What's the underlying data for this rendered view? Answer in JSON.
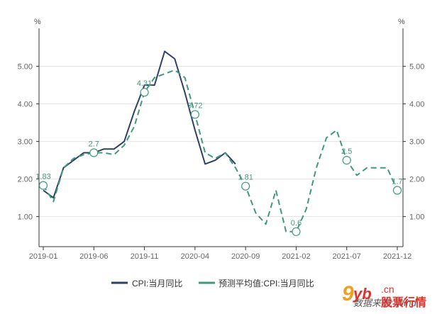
{
  "chart_data": {
    "type": "line",
    "y_unit_left": "%",
    "y_unit_right": "%",
    "ylim": [
      0.0,
      5.8
    ],
    "y_ticks": [
      "1.00",
      "2.00",
      "3.00",
      "4.00",
      "5.00"
    ],
    "x_ticks": [
      "2019-01",
      "2019-06",
      "2019-11",
      "2020-04",
      "2020-09",
      "2021-02",
      "2021-07",
      "2021-12"
    ],
    "grid": "horizontal",
    "legend_position": "bottom",
    "series": [
      {
        "name": "CPI:当月同比",
        "color": "#2e3f6b",
        "style": "solid",
        "x": [
          "2019-01",
          "2019-02",
          "2019-03",
          "2019-04",
          "2019-05",
          "2019-06",
          "2019-07",
          "2019-08",
          "2019-09",
          "2019-10",
          "2019-11",
          "2019-12",
          "2020-01",
          "2020-02",
          "2020-03",
          "2020-04",
          "2020-05",
          "2020-06",
          "2020-07",
          "2020-08"
        ],
        "values": [
          1.7,
          1.5,
          2.3,
          2.5,
          2.7,
          2.7,
          2.8,
          2.8,
          3.0,
          3.8,
          4.5,
          4.5,
          5.4,
          5.2,
          4.3,
          3.3,
          2.4,
          2.5,
          2.7,
          2.4
        ]
      },
      {
        "name": "预测平均值:CPI:当月同比",
        "color": "#3f9a7a",
        "style": "dashed",
        "x": [
          "2019-01",
          "2019-02",
          "2019-03",
          "2019-04",
          "2019-05",
          "2019-06",
          "2019-07",
          "2019-08",
          "2019-09",
          "2019-10",
          "2019-11",
          "2019-12",
          "2020-01",
          "2020-02",
          "2020-03",
          "2020-04",
          "2020-05",
          "2020-06",
          "2020-07",
          "2020-08",
          "2020-09",
          "2020-10",
          "2020-11",
          "2020-12",
          "2021-01",
          "2021-02",
          "2021-03",
          "2021-04",
          "2021-05",
          "2021-06",
          "2021-07",
          "2021-08",
          "2021-09",
          "2021-10",
          "2021-11",
          "2021-12"
        ],
        "values": [
          1.83,
          1.4,
          2.3,
          2.55,
          2.65,
          2.7,
          2.7,
          2.65,
          2.9,
          3.4,
          4.31,
          4.7,
          4.8,
          4.9,
          4.7,
          3.72,
          2.7,
          2.55,
          2.7,
          2.3,
          1.81,
          1.1,
          0.8,
          1.7,
          0.6,
          0.6,
          1.2,
          2.3,
          3.1,
          3.3,
          2.5,
          2.1,
          2.3,
          2.3,
          2.3,
          1.7
        ]
      }
    ],
    "data_labels": [
      {
        "x": "2019-01",
        "value": 1.83,
        "text": "1.83"
      },
      {
        "x": "2019-06",
        "value": 2.7,
        "text": "2.7"
      },
      {
        "x": "2019-11",
        "value": 4.31,
        "text": "4.31"
      },
      {
        "x": "2020-04",
        "value": 3.72,
        "text": "3.72"
      },
      {
        "x": "2020-09",
        "value": 1.81,
        "text": "1.81"
      },
      {
        "x": "2021-02",
        "value": 0.6,
        "text": "0.6"
      },
      {
        "x": "2021-07",
        "value": 2.5,
        "text": "2.5"
      },
      {
        "x": "2021-12",
        "value": 1.7,
        "text": "1.7"
      }
    ]
  },
  "legend": {
    "items": [
      {
        "label": "CPI:当月同比",
        "color": "#2e3f6b",
        "style": "solid"
      },
      {
        "label": "预测平均值:CPI:当月同比",
        "color": "#3f9a7a",
        "style": "dashed"
      }
    ]
  },
  "source": "数据来源: Wind",
  "watermark": {
    "nine": "9",
    "yb": "yb",
    "cn": ".cn",
    "text": "股票行情"
  }
}
